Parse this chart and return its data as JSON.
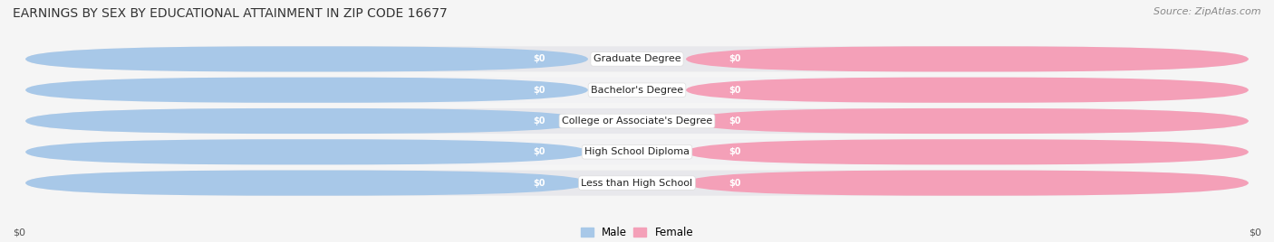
{
  "title": "EARNINGS BY SEX BY EDUCATIONAL ATTAINMENT IN ZIP CODE 16677",
  "source": "Source: ZipAtlas.com",
  "categories": [
    "Less than High School",
    "High School Diploma",
    "College or Associate's Degree",
    "Bachelor's Degree",
    "Graduate Degree"
  ],
  "male_values": [
    0,
    0,
    0,
    0,
    0
  ],
  "female_values": [
    0,
    0,
    0,
    0,
    0
  ],
  "male_color": "#a8c8e8",
  "female_color": "#f4a0b8",
  "row_bg_light": "#f0f0f0",
  "row_bg_dark": "#e4e4e8",
  "pill_bg_color": "#d8d8e0",
  "xlabel_left": "$0",
  "xlabel_right": "$0",
  "title_fontsize": 10,
  "source_fontsize": 8,
  "figsize": [
    14.06,
    2.68
  ],
  "dpi": 100
}
